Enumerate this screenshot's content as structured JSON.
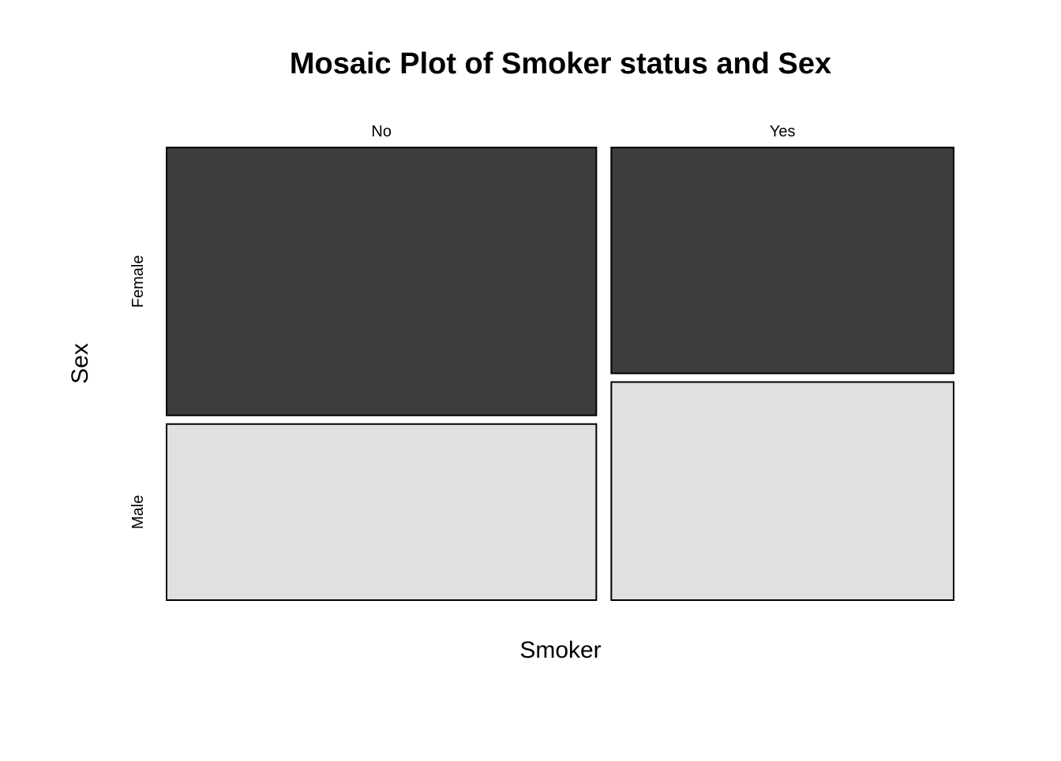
{
  "chart_data": {
    "type": "mosaic",
    "title": "Mosaic Plot of Smoker status and Sex",
    "xlabel": "Smoker",
    "ylabel": "Sex",
    "x_categories": [
      "No",
      "Yes"
    ],
    "y_categories": [
      "Female",
      "Male"
    ],
    "x_proportions": [
      0.5566,
      0.4434
    ],
    "conditional_proportions": {
      "No": {
        "Female": 0.6034,
        "Male": 0.3966
      },
      "Yes": {
        "Female": 0.5088,
        "Male": 0.4912
      }
    },
    "colors": {
      "Female": "#3d3d3d",
      "Male": "#e0e0e0",
      "border": "#000000"
    },
    "grid": false,
    "legend": "none"
  }
}
